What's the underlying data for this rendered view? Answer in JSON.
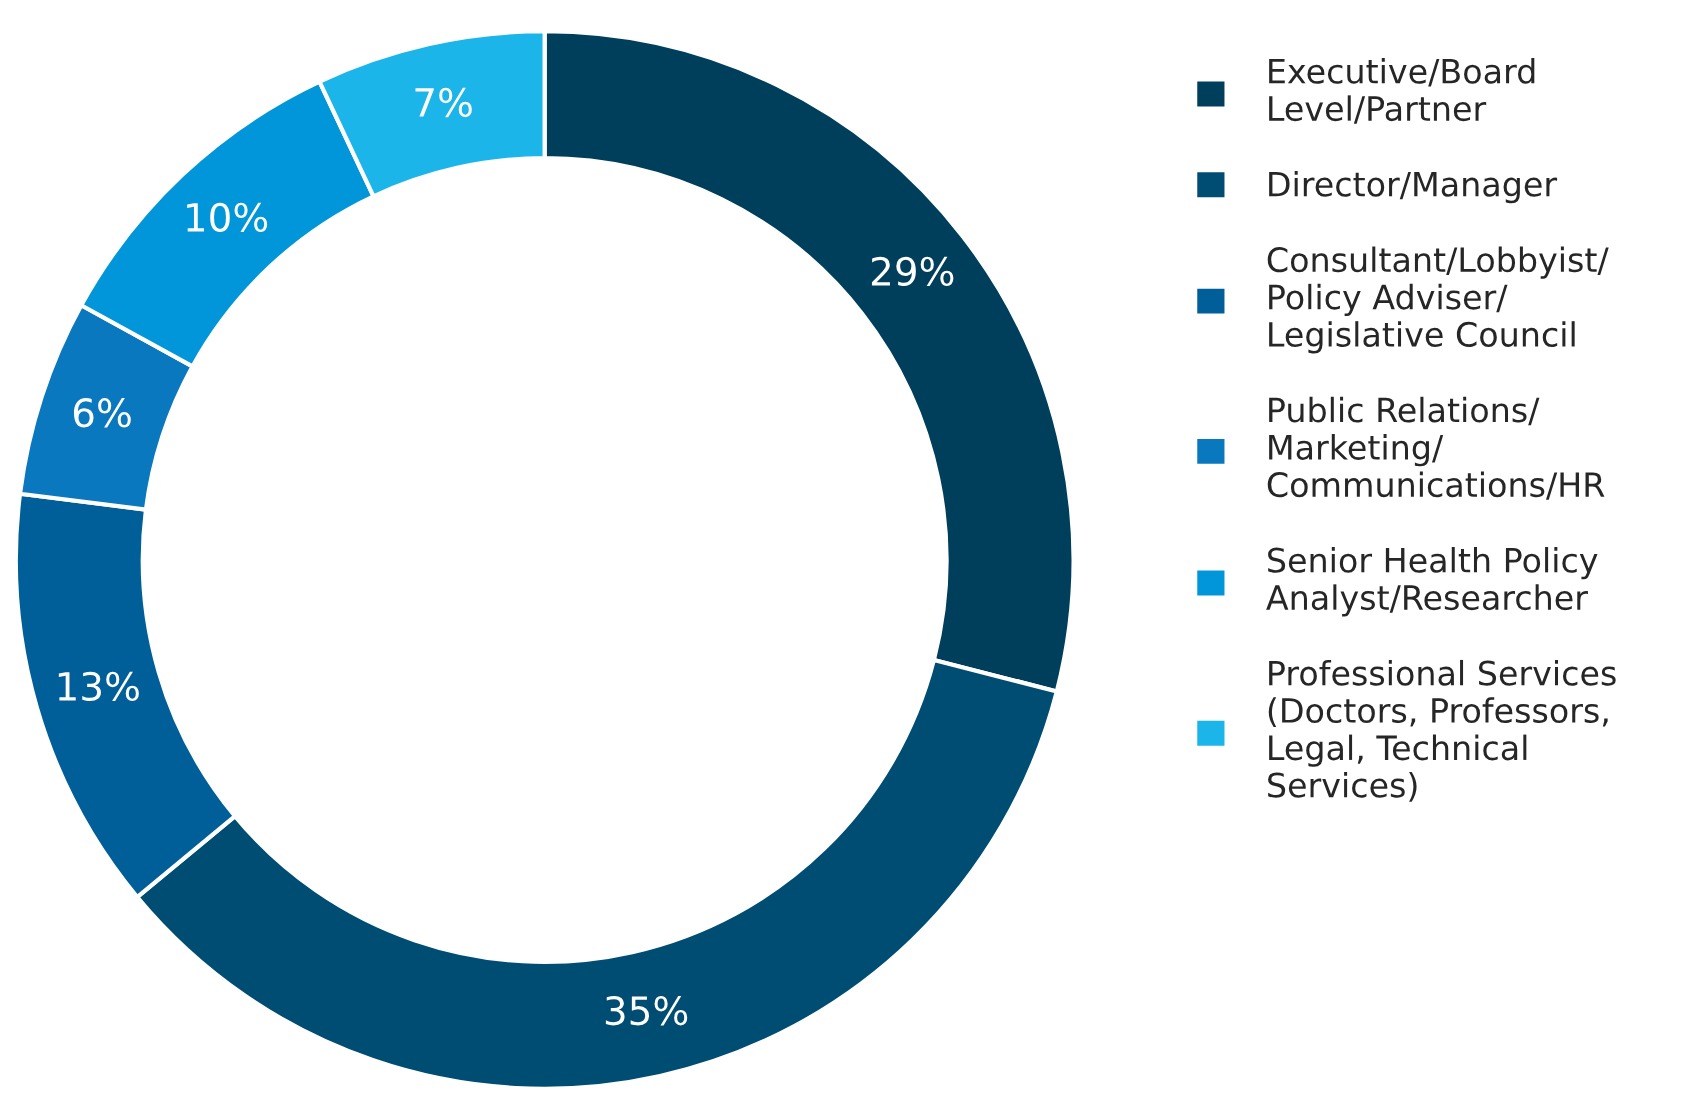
{
  "chart_data": {
    "type": "donut",
    "categories": [
      "Executive/Board\nLevel/Partner",
      "Director/Manager",
      "Consultant/Lobbyist/\nPolicy Adviser/\nLegislative Council",
      "Public Relations/\nMarketing/\nCommunications/HR",
      "Senior Health Policy\nAnalyst/Researcher",
      "Professional Services\n(Doctors, Professors,\nLegal, Technical\nServices)"
    ],
    "values": [
      29,
      35,
      13,
      6,
      10,
      7
    ],
    "colors": [
      "#003f5c",
      "#004d73",
      "#005f99",
      "#0a78bf",
      "#0096d9",
      "#1cb5ea"
    ],
    "value_labels": [
      "29%",
      "35%",
      "13%",
      "6%",
      "10%",
      "7%"
    ],
    "legend": "right"
  }
}
